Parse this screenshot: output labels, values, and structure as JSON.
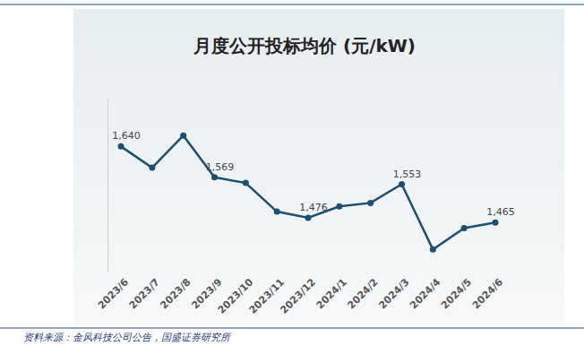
{
  "chart_data": {
    "type": "line",
    "title": "月度公开投标均价 (元/kW)",
    "categories": [
      "2023/6",
      "2023/7",
      "2023/8",
      "2023/9",
      "2023/10",
      "2023/11",
      "2023/12",
      "2024/1",
      "2024/2",
      "2024/3",
      "2024/4",
      "2024/5",
      "2024/6"
    ],
    "values": [
      1640,
      1591,
      1665,
      1569,
      1556,
      1490,
      1476,
      1502,
      1510,
      1553,
      1403,
      1452,
      1465
    ],
    "value_labels": [
      "1,640",
      null,
      null,
      "1,569",
      null,
      null,
      "1,476",
      null,
      null,
      "1,553",
      null,
      null,
      "1,465"
    ],
    "color": "#1d4f6e",
    "marker": "circle",
    "ylim": [
      1350,
      1750
    ],
    "grid": false,
    "data_labels": true,
    "tick_labels": "x",
    "source": "资料来源：金风科技公司公告，国盛证券研究所"
  }
}
